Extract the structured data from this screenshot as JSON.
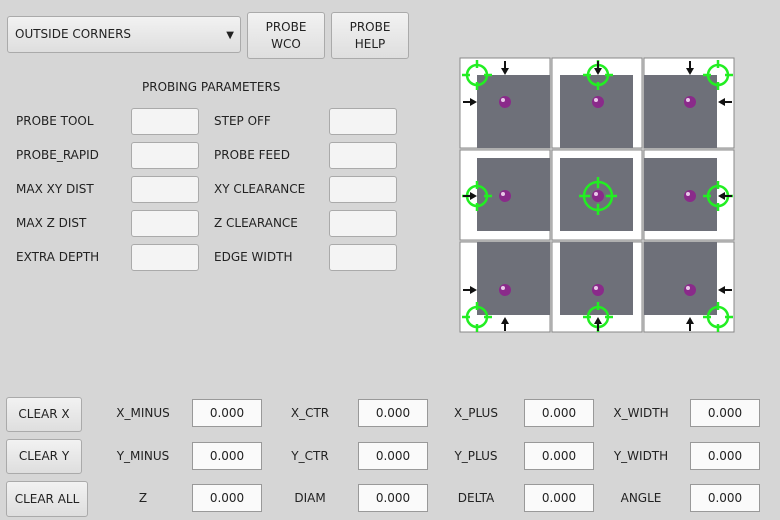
{
  "mode_select": {
    "value": "OUTSIDE CORNERS"
  },
  "buttons": {
    "probe_wco": "PROBE\nWCO",
    "probe_help": "PROBE\nHELP",
    "clear_x": "CLEAR X",
    "clear_y": "CLEAR Y",
    "clear_all": "CLEAR ALL"
  },
  "params": {
    "title": "PROBING PARAMETERS",
    "left": [
      {
        "label": "PROBE TOOL",
        "value": ""
      },
      {
        "label": "PROBE_RAPID",
        "value": ""
      },
      {
        "label": "MAX XY DIST",
        "value": ""
      },
      {
        "label": "MAX Z DIST",
        "value": ""
      },
      {
        "label": "EXTRA DEPTH",
        "value": ""
      }
    ],
    "right": [
      {
        "label": "STEP OFF",
        "value": ""
      },
      {
        "label": "PROBE FEED",
        "value": ""
      },
      {
        "label": "XY CLEARANCE",
        "value": ""
      },
      {
        "label": "Z CLEARANCE",
        "value": ""
      },
      {
        "label": "EDGE WIDTH",
        "value": ""
      }
    ]
  },
  "results": [
    [
      {
        "label": "X_MINUS",
        "value": "0.000"
      },
      {
        "label": "X_CTR",
        "value": "0.000"
      },
      {
        "label": "X_PLUS",
        "value": "0.000"
      },
      {
        "label": "X_WIDTH",
        "value": "0.000"
      }
    ],
    [
      {
        "label": "Y_MINUS",
        "value": "0.000"
      },
      {
        "label": "Y_CTR",
        "value": "0.000"
      },
      {
        "label": "Y_PLUS",
        "value": "0.000"
      },
      {
        "label": "Y_WIDTH",
        "value": "0.000"
      }
    ],
    [
      {
        "label": "Z",
        "value": "0.000"
      },
      {
        "label": "DIAM",
        "value": "0.000"
      },
      {
        "label": "DELTA",
        "value": "0.000"
      },
      {
        "label": "ANGLE",
        "value": "0.000"
      }
    ]
  ],
  "colors": {
    "target": "#22ee22",
    "workpiece": "#6e7079",
    "ball": "#8a2a8a"
  }
}
